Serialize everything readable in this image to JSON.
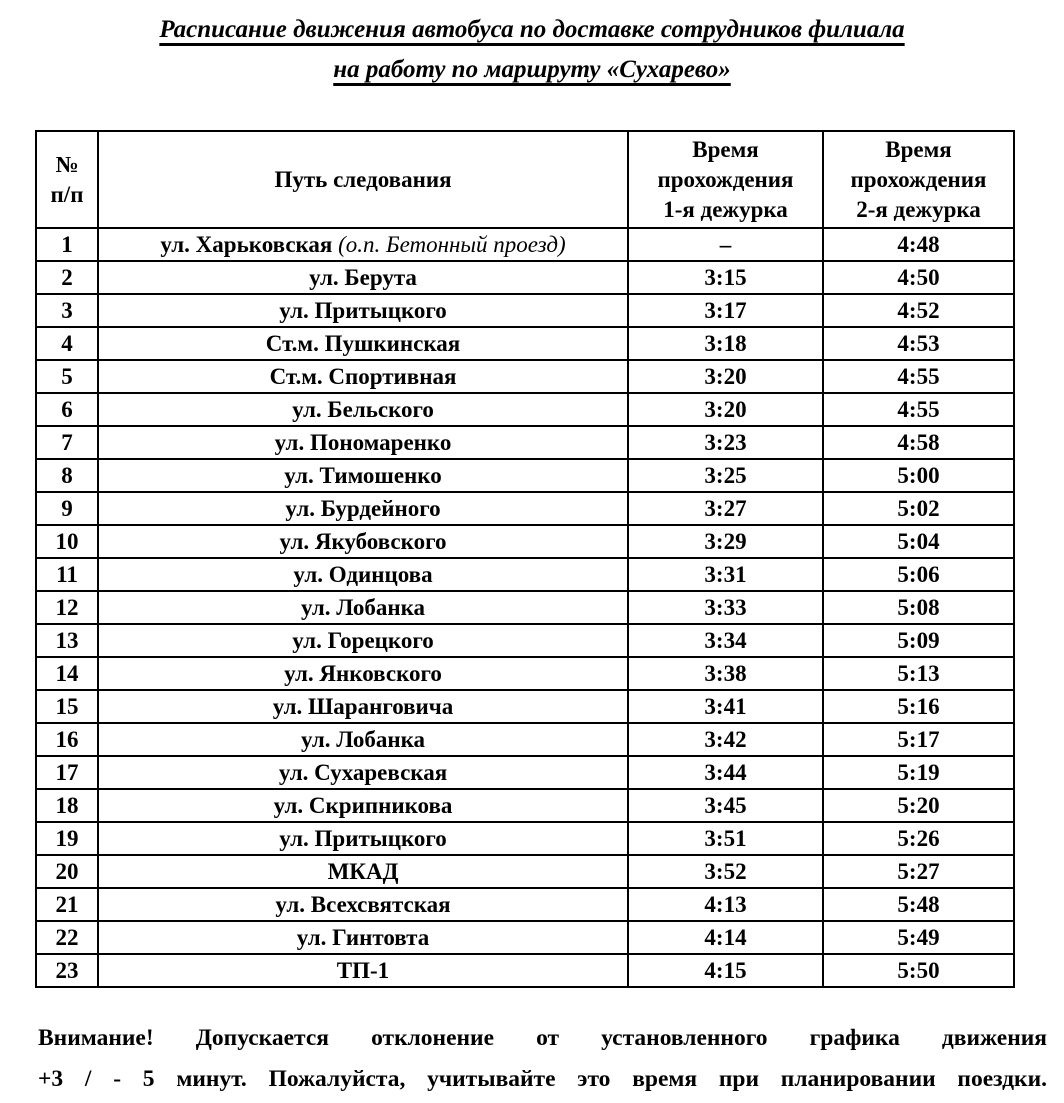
{
  "page": {
    "title_line1": "Расписание движения автобуса по доставке сотрудников филиала",
    "title_line2": "на работу по маршруту «Сухарево»"
  },
  "table": {
    "headers": {
      "num": "№\nп/п",
      "route": "Путь следования",
      "time1": "Время\nпрохождения\n1-я дежурка",
      "time2": "Время\nпрохождения\n2-я дежурка"
    },
    "rows": [
      {
        "num": "1",
        "route": "ул. Харьковская",
        "route_note": "(о.п. Бетонный проезд)",
        "time1": "–",
        "time2": "4:48"
      },
      {
        "num": "2",
        "route": "ул. Берута",
        "time1": "3:15",
        "time2": "4:50"
      },
      {
        "num": "3",
        "route": "ул. Притыцкого",
        "time1": "3:17",
        "time2": "4:52"
      },
      {
        "num": "4",
        "route": "Ст.м. Пушкинская",
        "time1": "3:18",
        "time2": "4:53"
      },
      {
        "num": "5",
        "route": "Ст.м. Спортивная",
        "time1": "3:20",
        "time2": "4:55"
      },
      {
        "num": "6",
        "route": "ул. Бельского",
        "time1": "3:20",
        "time2": "4:55"
      },
      {
        "num": "7",
        "route": "ул. Пономаренко",
        "time1": "3:23",
        "time2": "4:58"
      },
      {
        "num": "8",
        "route": "ул. Тимошенко",
        "time1": "3:25",
        "time2": "5:00"
      },
      {
        "num": "9",
        "route": "ул. Бурдейного",
        "time1": "3:27",
        "time2": "5:02"
      },
      {
        "num": "10",
        "route": "ул. Якубовского",
        "time1": "3:29",
        "time2": "5:04"
      },
      {
        "num": "11",
        "route": "ул. Одинцова",
        "time1": "3:31",
        "time2": "5:06"
      },
      {
        "num": "12",
        "route": "ул. Лобанка",
        "time1": "3:33",
        "time2": "5:08"
      },
      {
        "num": "13",
        "route": "ул. Горецкого",
        "time1": "3:34",
        "time2": "5:09"
      },
      {
        "num": "14",
        "route": "ул. Янковского",
        "time1": "3:38",
        "time2": "5:13"
      },
      {
        "num": "15",
        "route": "ул. Шаранговича",
        "time1": "3:41",
        "time2": "5:16"
      },
      {
        "num": "16",
        "route": "ул. Лобанка",
        "time1": "3:42",
        "time2": "5:17"
      },
      {
        "num": "17",
        "route": "ул. Сухаревская",
        "time1": "3:44",
        "time2": "5:19"
      },
      {
        "num": "18",
        "route": "ул. Скрипникова",
        "time1": "3:45",
        "time2": "5:20"
      },
      {
        "num": "19",
        "route": "ул. Притыцкого",
        "time1": "3:51",
        "time2": "5:26"
      },
      {
        "num": "20",
        "route": "МКАД",
        "time1": "3:52",
        "time2": "5:27"
      },
      {
        "num": "21",
        "route": "ул. Всехсвятская",
        "time1": "4:13",
        "time2": "5:48"
      },
      {
        "num": "22",
        "route": "ул. Гинтовта",
        "time1": "4:14",
        "time2": "5:49"
      },
      {
        "num": "23",
        "route": "ТП-1",
        "time1": "4:15",
        "time2": "5:50"
      }
    ]
  },
  "note": {
    "line1": "Внимание! Допускается отклонение от установленного графика движения",
    "line2": "+3 / - 5 минут. Пожалуйста, учитывайте это время при планировании поездки."
  },
  "colors": {
    "text": "#000000",
    "background": "#ffffff",
    "border": "#000000"
  }
}
